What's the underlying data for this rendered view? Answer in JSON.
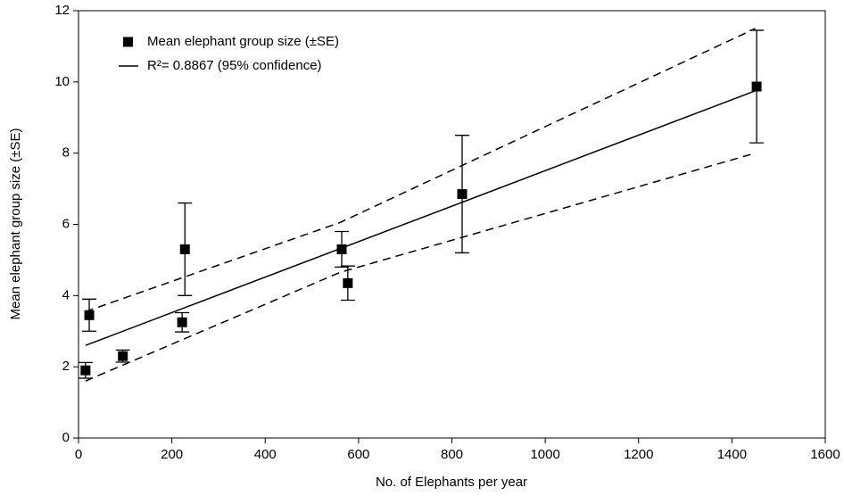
{
  "chart_data": {
    "type": "scatter",
    "xlabel": "No. of Elephants per year",
    "ylabel": "Mean elephant group size (±SE)",
    "xlim": [
      0,
      1600
    ],
    "xticks": [
      0,
      200,
      400,
      600,
      800,
      1000,
      1200,
      1400,
      1600
    ],
    "ylim": [
      0,
      12
    ],
    "yticks": [
      0,
      2,
      4,
      6,
      8,
      10,
      12
    ],
    "grid": false,
    "legend": "upper left",
    "series": [
      {
        "name": "Mean elephant group size (±SE)",
        "type": "scatter",
        "color": "#000000",
        "x": [
          15,
          23,
          95,
          222,
          228,
          564,
          577,
          822,
          1453
        ],
        "values": [
          1.9,
          3.45,
          2.3,
          3.25,
          5.3,
          5.3,
          4.35,
          6.85,
          9.87
        ],
        "errors": [
          0.22,
          0.45,
          0.17,
          0.27,
          1.3,
          0.5,
          0.48,
          1.65,
          1.58
        ]
      },
      {
        "name": "R²= 0.8867 (95% confidence)",
        "type": "line",
        "style": "solid",
        "color": "#000000",
        "x": [
          15,
          1450
        ],
        "values": [
          2.6,
          9.75
        ]
      },
      {
        "type": "line",
        "style": "dashed",
        "color": "#000000",
        "x": [
          15,
          560,
          1450
        ],
        "values": [
          3.55,
          6.05,
          11.5
        ]
      },
      {
        "type": "line",
        "style": "dashed",
        "color": "#000000",
        "x": [
          15,
          560,
          1450
        ],
        "values": [
          1.6,
          4.65,
          8.0
        ]
      }
    ]
  }
}
